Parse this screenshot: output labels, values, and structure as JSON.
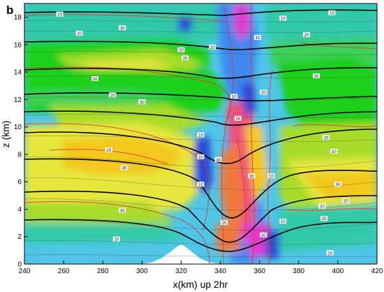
{
  "chart_data": {
    "type": "contour",
    "panel_label": "b",
    "xlabel": "x(km)  up 2hr",
    "ylabel": "z (km)",
    "xlim": [
      240,
      420
    ],
    "ylim": [
      0,
      19
    ],
    "x_ticks": [
      240,
      260,
      280,
      300,
      320,
      340,
      360,
      380,
      400,
      420
    ],
    "y_ticks": [
      0,
      2,
      4,
      6,
      8,
      10,
      12,
      14,
      16,
      18
    ],
    "x_tick_labels": [
      "240",
      "260",
      "280",
      "300",
      "320",
      "340",
      "360",
      "380",
      "400",
      "420"
    ],
    "y_tick_labels": [
      "0",
      "2",
      "4",
      "6",
      "8",
      "10",
      "12",
      "14",
      "16",
      "18"
    ],
    "fill_colors": [
      "#2a4bd6",
      "#3f88f0",
      "#4fc6e8",
      "#33c9a8",
      "#3ccf5a",
      "#1fd01f",
      "#a8dc2a",
      "#e6e63c",
      "#f2c81c",
      "#f07a3c",
      "#f0507a",
      "#e23ad2"
    ],
    "isentrope_color": "#000000",
    "contour_color": "#e83030",
    "streamline_color": "#3a3a3a",
    "terrain_color": "#ffffff",
    "terrain": {
      "x": [
        240,
        300,
        305,
        310,
        315,
        318,
        320,
        322,
        325,
        330,
        335,
        340,
        420
      ],
      "z": [
        0,
        0,
        0.1,
        0.4,
        0.9,
        1.25,
        1.4,
        1.25,
        0.9,
        0.35,
        0.08,
        0,
        0
      ]
    },
    "contour_labels": [
      {
        "x": 258,
        "z": 18.2,
        "text": "10"
      },
      {
        "x": 268,
        "z": 16.8,
        "text": "20"
      },
      {
        "x": 290,
        "z": 17.2,
        "text": "30"
      },
      {
        "x": 276,
        "z": 13.5,
        "text": "20"
      },
      {
        "x": 285,
        "z": 12.3,
        "text": "20"
      },
      {
        "x": 300,
        "z": 11.8,
        "text": "30"
      },
      {
        "x": 283,
        "z": 8.3,
        "text": "20"
      },
      {
        "x": 291,
        "z": 7.0,
        "text": "30"
      },
      {
        "x": 290,
        "z": 3.9,
        "text": "30"
      },
      {
        "x": 287,
        "z": 1.8,
        "text": "10"
      },
      {
        "x": 320,
        "z": 15.6,
        "text": "10"
      },
      {
        "x": 322,
        "z": 15.0,
        "text": "20"
      },
      {
        "x": 330,
        "z": 9.4,
        "text": "10"
      },
      {
        "x": 330,
        "z": 5.8,
        "text": "10"
      },
      {
        "x": 330,
        "z": 7.8,
        "text": "20"
      },
      {
        "x": 339,
        "z": 7.6,
        "text": "30"
      },
      {
        "x": 347,
        "z": 12.2,
        "text": "10"
      },
      {
        "x": 349,
        "z": 10.6,
        "text": "20"
      },
      {
        "x": 356,
        "z": 6.4,
        "text": "30"
      },
      {
        "x": 359,
        "z": 16.5,
        "text": "10"
      },
      {
        "x": 362,
        "z": 12.5,
        "text": "20"
      },
      {
        "x": 366,
        "z": 6.4,
        "text": "10"
      },
      {
        "x": 372,
        "z": 17.9,
        "text": "10"
      },
      {
        "x": 372,
        "z": 3.1,
        "text": "10"
      },
      {
        "x": 384,
        "z": 16.7,
        "text": "20"
      },
      {
        "x": 389,
        "z": 13.7,
        "text": "20"
      },
      {
        "x": 394,
        "z": 9.2,
        "text": "20"
      },
      {
        "x": 398,
        "z": 8.2,
        "text": "10"
      },
      {
        "x": 400,
        "z": 5.8,
        "text": "30"
      },
      {
        "x": 404,
        "z": 4.6,
        "text": "20"
      },
      {
        "x": 392,
        "z": 4.2,
        "text": "10"
      },
      {
        "x": 397,
        "z": 18.3,
        "text": "10"
      },
      {
        "x": 393,
        "z": 3.3,
        "text": "20"
      },
      {
        "x": 396,
        "z": 0.8,
        "text": "10"
      },
      {
        "x": 362,
        "z": 2.1,
        "text": "20"
      },
      {
        "x": 342,
        "z": 3.0,
        "text": "20"
      },
      {
        "x": 336,
        "z": 15.8,
        "text": "20"
      }
    ]
  }
}
